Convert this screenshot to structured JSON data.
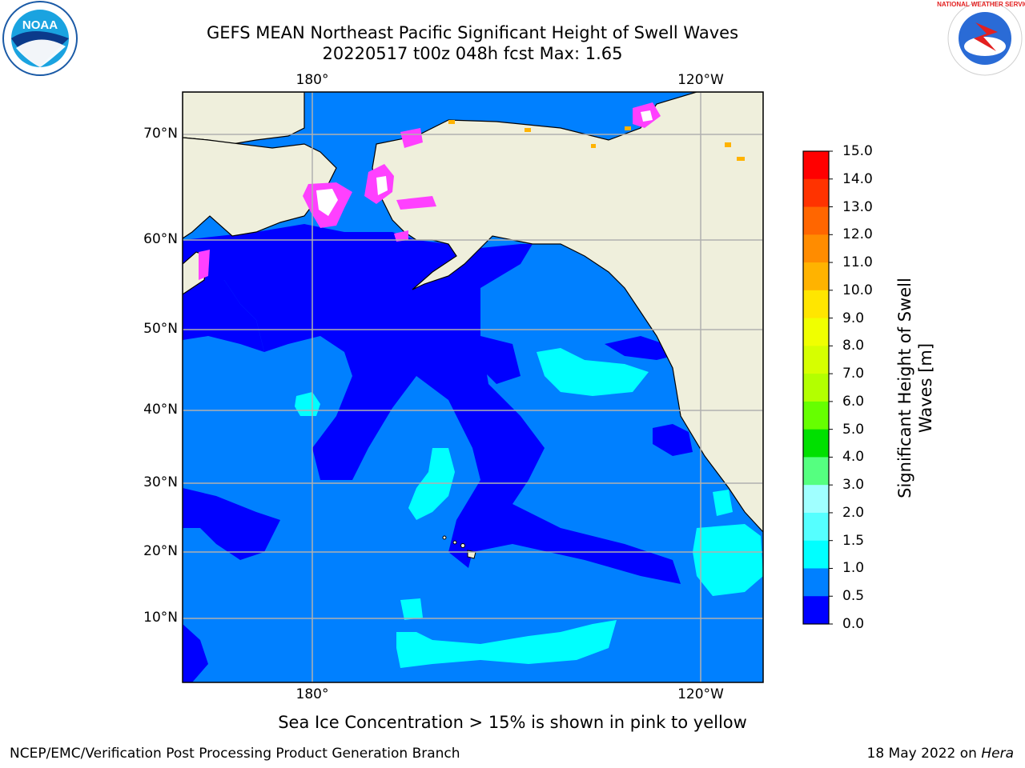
{
  "title": {
    "line1": "GEFS MEAN Northeast Pacific Significant Height of Swell Waves",
    "line2": "20220517 t00z 048h fcst   Max: 1.65"
  },
  "map": {
    "lon_labels_top": [
      "180°",
      "120°W"
    ],
    "lon_labels_bottom": [
      "180°",
      "120°W"
    ],
    "lat_labels": [
      "70°N",
      "60°N",
      "50°N",
      "40°N",
      "30°N",
      "20°N",
      "10°N"
    ],
    "colors": {
      "land": "#efefdc",
      "ocean_0_05": "#0000ff",
      "ocean_05_10": "#0080ff",
      "ocean_10_15": "#00ffff",
      "ice": "#ff40ff"
    }
  },
  "colorbar": {
    "title": "Significant Height of Swell Waves [m]",
    "ticks": [
      "15.0",
      "14.0",
      "13.0",
      "12.0",
      "11.0",
      "10.0",
      "9.0",
      "8.0",
      "7.0",
      "6.0",
      "5.0",
      "4.0",
      "3.0",
      "2.0",
      "1.5",
      "1.0",
      "0.5",
      "0.0"
    ],
    "colors": [
      "#ff0000",
      "#ff3300",
      "#ff6600",
      "#ff8c00",
      "#ffb300",
      "#ffe600",
      "#f0ff00",
      "#d6ff00",
      "#b3ff00",
      "#66ff00",
      "#00e000",
      "#55ff80",
      "#a0ffff",
      "#55ffff",
      "#00ffff",
      "#0080ff",
      "#0000ff"
    ]
  },
  "note": "Sea Ice Concentration > 15% is shown in pink to yellow",
  "footer": {
    "left": "NCEP/EMC/Verification Post Processing Product Generation Branch",
    "right_prefix": "18 May 2022 on ",
    "right_machine": "Hera"
  },
  "logos": {
    "noaa": "NOAA",
    "nws": "NATIONAL WEATHER SERVICE"
  }
}
